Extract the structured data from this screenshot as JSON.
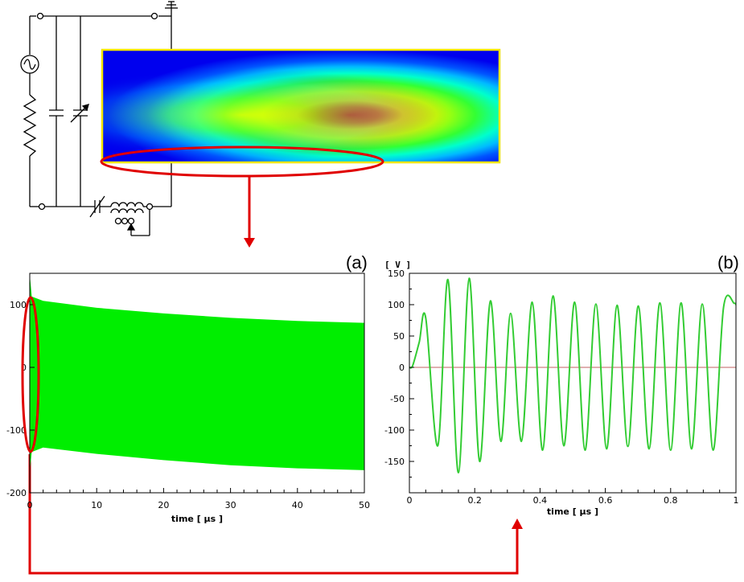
{
  "chart_data": [
    {
      "type": "area",
      "panel_label": "(a)",
      "xlabel": "time [ μs ]",
      "ylabel": "",
      "xlim": [
        0,
        50
      ],
      "ylim": [
        -200,
        150
      ],
      "x_ticks": [
        0,
        10,
        20,
        30,
        40,
        50
      ],
      "y_ticks": [
        -200,
        -100,
        0,
        100
      ],
      "series": [
        {
          "color": "#00ee00",
          "upper_envelope": {
            "x": [
              0,
              0.3,
              2,
              10,
              20,
              30,
              40,
              50
            ],
            "y": [
              148,
              113,
              106,
              95,
              86,
              79,
              74,
              71
            ]
          },
          "lower_envelope": {
            "x": [
              0,
              0.3,
              2,
              10,
              20,
              30,
              40,
              50
            ],
            "y": [
              -165,
              -135,
              -128,
              -138,
              -148,
              -156,
              -161,
              -164
            ]
          }
        }
      ]
    },
    {
      "type": "line",
      "panel_label": "(b)",
      "unit_label": "[ V ]",
      "xlabel": "time [ μs ]",
      "ylabel": "",
      "xlim": [
        0,
        1
      ],
      "ylim": [
        -200,
        150
      ],
      "x_ticks": [
        0,
        0.2,
        0.4,
        0.6,
        0.8,
        1
      ],
      "y_ticks": [
        -150,
        -100,
        -50,
        0,
        50,
        100,
        150
      ],
      "zero_line_color": "#c06060",
      "series": [
        {
          "color": "#33cc33",
          "x": [
            0,
            0.01,
            0.03,
            0.05,
            0.087,
            0.118,
            0.15,
            0.183,
            0.215,
            0.248,
            0.28,
            0.31,
            0.343,
            0.376,
            0.408,
            0.44,
            0.473,
            0.506,
            0.538,
            0.571,
            0.604,
            0.636,
            0.669,
            0.701,
            0.734,
            0.767,
            0.8,
            0.832,
            0.864,
            0.897,
            0.93,
            0.962,
            0.995,
            1.0
          ],
          "y": [
            0,
            3,
            40,
            79,
            -125,
            140,
            -168,
            142,
            -150,
            106,
            -118,
            86,
            -118,
            104,
            -132,
            114,
            -125,
            104,
            -132,
            101,
            -130,
            99,
            -126,
            98,
            -130,
            103,
            -132,
            103,
            -130,
            101,
            -132,
            96,
            102,
            100
          ]
        }
      ]
    }
  ]
}
